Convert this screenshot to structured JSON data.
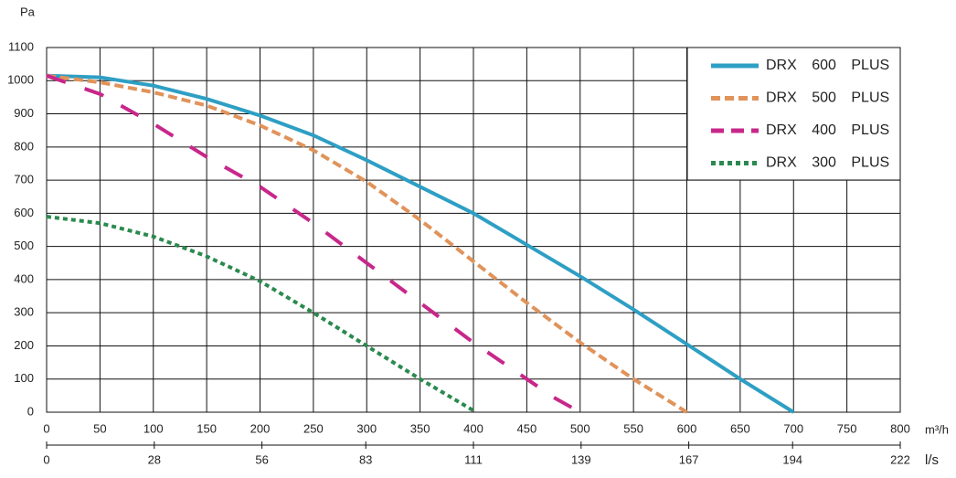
{
  "chart_data": {
    "type": "line",
    "ylabel": "Pa",
    "xlabel": "m³/h",
    "x2label": "l/s",
    "xlim": [
      0,
      800
    ],
    "xticks": [
      0,
      50,
      100,
      150,
      200,
      250,
      300,
      350,
      400,
      450,
      500,
      550,
      600,
      650,
      700,
      750,
      800
    ],
    "x2lim": [
      0,
      222
    ],
    "x2ticks": [
      0,
      28,
      56,
      83,
      111,
      139,
      167,
      194,
      222
    ],
    "ylim": [
      0,
      1100
    ],
    "yticks": [
      0,
      100,
      200,
      300,
      400,
      500,
      600,
      700,
      800,
      900,
      1000,
      1100
    ],
    "grid": true,
    "legend": "upper right",
    "series": [
      {
        "name": "DRX 600 PLUS",
        "color": "#2e9fc4",
        "style": "solid",
        "x": [
          0,
          50,
          100,
          150,
          200,
          250,
          300,
          350,
          400,
          450,
          500,
          550,
          600,
          650,
          700
        ],
        "values": [
          1015,
          1010,
          985,
          945,
          895,
          835,
          760,
          680,
          600,
          505,
          410,
          310,
          205,
          100,
          0
        ]
      },
      {
        "name": "DRX 500 PLUS",
        "color": "#e0935a",
        "style": "dashed",
        "x": [
          0,
          50,
          100,
          150,
          200,
          250,
          300,
          350,
          400,
          450,
          500,
          550,
          600
        ],
        "values": [
          1015,
          995,
          965,
          925,
          865,
          790,
          695,
          580,
          455,
          330,
          210,
          100,
          0
        ]
      },
      {
        "name": "DRX 400 PLUS",
        "color": "#c8278a",
        "style": "longdash",
        "x": [
          0,
          50,
          100,
          150,
          200,
          250,
          300,
          350,
          400,
          450,
          475,
          500
        ],
        "values": [
          1015,
          960,
          870,
          770,
          680,
          570,
          450,
          330,
          210,
          100,
          45,
          0
        ]
      },
      {
        "name": "DRX 300 PLUS",
        "color": "#2a8a4e",
        "style": "dotted",
        "x": [
          0,
          50,
          100,
          150,
          200,
          250,
          300,
          350,
          400
        ],
        "values": [
          590,
          570,
          530,
          470,
          395,
          300,
          200,
          100,
          5
        ]
      }
    ]
  }
}
